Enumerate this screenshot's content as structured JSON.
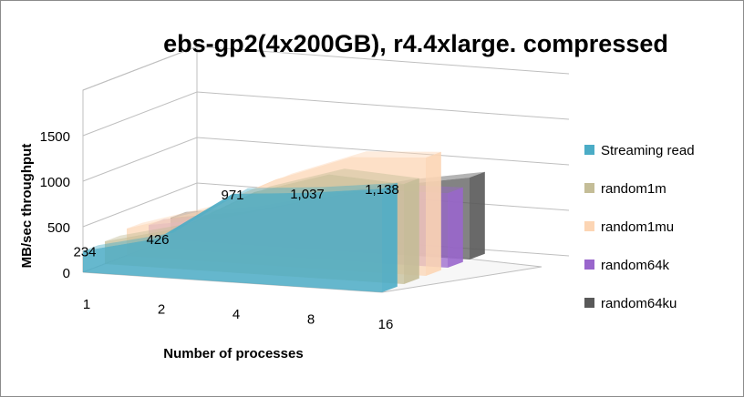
{
  "chart_data": {
    "type": "area",
    "title": "ebs-gp2(4x200GB), r4.4xlarge. compressed",
    "xlabel": "Number of processes",
    "ylabel": "MB/sec throughput",
    "categories": [
      "1",
      "2",
      "4",
      "8",
      "16"
    ],
    "y_ticks": [
      "0",
      "500",
      "1000",
      "1500"
    ],
    "ylim": [
      0,
      1500
    ],
    "grid": true,
    "legend_position": "right",
    "series": [
      {
        "name": "Streaming read",
        "values": [
          234,
          426,
          971,
          1037,
          1138
        ],
        "data_labels": [
          "234",
          "426",
          "971",
          "1,037",
          "1,138"
        ],
        "color": "#4bacc6"
      },
      {
        "name": "random1m",
        "values": [
          250,
          450,
          900,
          1150,
          1100
        ],
        "color": "#c4bd97"
      },
      {
        "name": "random1mu",
        "values": [
          300,
          550,
          950,
          1250,
          1300
        ],
        "color": "#fcd5b4"
      },
      {
        "name": "random64k",
        "values": [
          250,
          380,
          600,
          800,
          820
        ],
        "color": "#9966cc"
      },
      {
        "name": "random64ku",
        "values": [
          240,
          360,
          560,
          760,
          900
        ],
        "color": "#595959"
      }
    ]
  }
}
